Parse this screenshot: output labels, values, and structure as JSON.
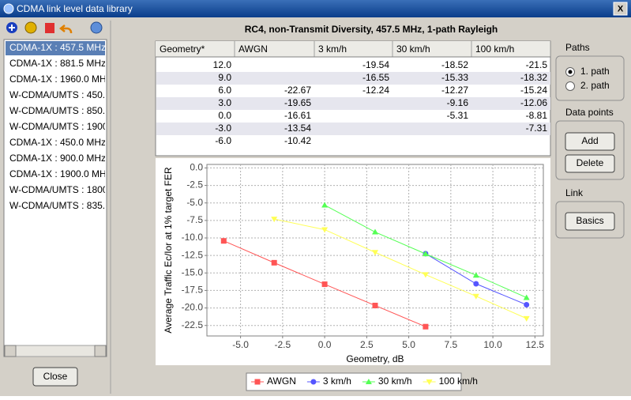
{
  "window": {
    "title": "CDMA link level data library",
    "close": "X"
  },
  "sidebar": {
    "items": [
      "CDMA-1X : 457.5 MHz",
      "CDMA-1X : 881.5 MHz",
      "CDMA-1X : 1960.0 MH",
      "W-CDMA/UMTS : 450.",
      "W-CDMA/UMTS : 850.",
      "W-CDMA/UMTS : 1900",
      "CDMA-1X : 450.0 MHz",
      "CDMA-1X : 900.0 MHz",
      "CDMA-1X : 1900.0 MH",
      "W-CDMA/UMTS : 1800",
      "W-CDMA/UMTS : 835."
    ],
    "close_button": "Close"
  },
  "table": {
    "columns": [
      "Geometry*",
      "AWGN",
      "3 km/h",
      "30 km/h",
      "100 km/h"
    ],
    "rows": [
      [
        "12.0",
        null,
        "-19.54",
        "-18.52",
        "-21.5"
      ],
      [
        "9.0",
        null,
        "-16.55",
        "-15.33",
        "-18.32"
      ],
      [
        "6.0",
        "-22.67",
        "-12.24",
        "-12.27",
        "-15.24"
      ],
      [
        "3.0",
        "-19.65",
        null,
        "-9.16",
        "-12.06"
      ],
      [
        "0.0",
        "-16.61",
        null,
        "-5.31",
        "-8.81"
      ],
      [
        "-3.0",
        "-13.54",
        null,
        null,
        "-7.31"
      ],
      [
        "-6.0",
        "-10.42",
        null,
        null,
        null
      ]
    ]
  },
  "paths": {
    "title": "Paths",
    "options": [
      "1. path",
      "2. path"
    ]
  },
  "data_points": {
    "title": "Data points",
    "buttons": [
      "Add",
      "Delete"
    ]
  },
  "link": {
    "title": "Link",
    "buttons": [
      "Basics"
    ]
  },
  "chart_data": {
    "type": "line",
    "title": "RC4, non-Transmit Diversity, 457.5 MHz, 1-path Rayleigh",
    "x_label": "Geometry, dB",
    "y_label": "Average Traffic Ec/Ior at 1% target FER",
    "x": [
      -6,
      -3,
      0,
      3,
      6,
      9,
      12
    ],
    "series": [
      {
        "name": "AWGN",
        "color": "#ff5555",
        "values": [
          -10.42,
          -13.54,
          -16.61,
          -19.65,
          -22.67,
          null,
          null
        ]
      },
      {
        "name": "3 km/h",
        "color": "#5555ff",
        "values": [
          null,
          null,
          null,
          null,
          -12.24,
          -16.55,
          -19.54
        ]
      },
      {
        "name": "30 km/h",
        "color": "#55ff55",
        "values": [
          null,
          null,
          -5.31,
          -9.16,
          -12.27,
          -15.33,
          -18.52
        ]
      },
      {
        "name": "100 km/h",
        "color": "#ffff55",
        "values": [
          null,
          -7.31,
          -8.81,
          -12.06,
          -15.24,
          -18.32,
          -21.5
        ]
      }
    ],
    "xlim": [
      -7,
      13
    ],
    "xticks": [
      {
        "value": -5,
        "label": "-5.0"
      },
      {
        "value": -2.5,
        "label": "-2.5"
      },
      {
        "value": 0,
        "label": "0.0"
      },
      {
        "value": 2.5,
        "label": "2.5"
      },
      {
        "value": 5,
        "label": "5.0"
      },
      {
        "value": 7.5,
        "label": "7.5"
      },
      {
        "value": 10,
        "label": "10.0"
      },
      {
        "value": 12.5,
        "label": "12.5"
      }
    ],
    "ylim": [
      -24,
      0.5
    ],
    "yticks": [
      {
        "value": 0,
        "label": "0.0"
      },
      {
        "value": -2.5,
        "label": "-2.5"
      },
      {
        "value": -5,
        "label": "-5.0"
      },
      {
        "value": -7.5,
        "label": "-7.5"
      },
      {
        "value": -10,
        "label": "-10.0"
      },
      {
        "value": -12.5,
        "label": "-12.5"
      },
      {
        "value": -15,
        "label": "-15.0"
      },
      {
        "value": -17.5,
        "label": "-17.5"
      },
      {
        "value": -20,
        "label": "-20.0"
      },
      {
        "value": -22.5,
        "label": "-22.5"
      }
    ],
    "grid": true
  }
}
